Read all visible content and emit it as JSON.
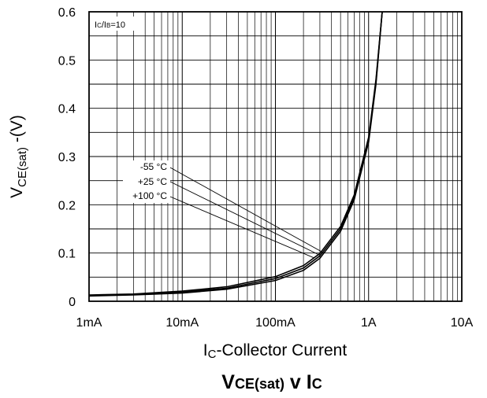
{
  "chart_data": {
    "type": "line",
    "title": "VCE(sat) v Ic",
    "title_parts": {
      "v1": "V",
      "v2": "CE(sat)",
      "v3": " v I",
      "v4": "C"
    },
    "condition_label": "IC/IB=10",
    "condition_parts": {
      "a": "I",
      "b": "C",
      "c": "/I",
      "d": "B",
      "e": "=10"
    },
    "xlabel": "IC-Collector Current",
    "xlabel_parts": {
      "a": "I",
      "b": "C",
      "c": "-Collector Current"
    },
    "ylabel": "VCE(sat) -(V)",
    "ylabel_parts": {
      "a": "V",
      "b": "CE(sat)",
      "c": " -(V)"
    },
    "x_scale": "log",
    "xlim_A": [
      0.001,
      10
    ],
    "ylim": [
      0,
      0.6
    ],
    "grid": true,
    "x_ticks": [
      {
        "value": 0.001,
        "label": "1mA"
      },
      {
        "value": 0.01,
        "label": "10mA"
      },
      {
        "value": 0.1,
        "label": "100mA"
      },
      {
        "value": 1,
        "label": "1A"
      },
      {
        "value": 10,
        "label": "10A"
      }
    ],
    "y_ticks": [
      {
        "value": 0,
        "label": "0"
      },
      {
        "value": 0.1,
        "label": "0.1"
      },
      {
        "value": 0.2,
        "label": "0.2"
      },
      {
        "value": 0.3,
        "label": "0.3"
      },
      {
        "value": 0.4,
        "label": "0.4"
      },
      {
        "value": 0.5,
        "label": "0.5"
      },
      {
        "value": 0.6,
        "label": "0.6"
      }
    ],
    "series": [
      {
        "name": "-55 °C",
        "x": [
          0.001,
          0.003,
          0.01,
          0.03,
          0.1,
          0.2,
          0.3,
          0.5,
          0.7,
          1.0,
          1.2,
          1.4
        ],
        "y": [
          0.011,
          0.013,
          0.017,
          0.025,
          0.043,
          0.064,
          0.089,
          0.145,
          0.21,
          0.33,
          0.45,
          0.6
        ]
      },
      {
        "name": "+25 °C",
        "x": [
          0.001,
          0.003,
          0.01,
          0.03,
          0.1,
          0.2,
          0.3,
          0.5,
          0.7,
          1.0,
          1.2,
          1.4
        ],
        "y": [
          0.012,
          0.014,
          0.019,
          0.027,
          0.047,
          0.069,
          0.094,
          0.15,
          0.215,
          0.335,
          0.455,
          0.6
        ]
      },
      {
        "name": "+100 °C",
        "x": [
          0.001,
          0.003,
          0.01,
          0.03,
          0.1,
          0.2,
          0.3,
          0.5,
          0.7,
          1.0,
          1.2,
          1.4
        ],
        "y": [
          0.013,
          0.015,
          0.021,
          0.03,
          0.051,
          0.074,
          0.099,
          0.155,
          0.22,
          0.34,
          0.46,
          0.6
        ]
      }
    ],
    "colors": {
      "line": "#000000",
      "grid": "#000000",
      "background": "#ffffff"
    }
  }
}
